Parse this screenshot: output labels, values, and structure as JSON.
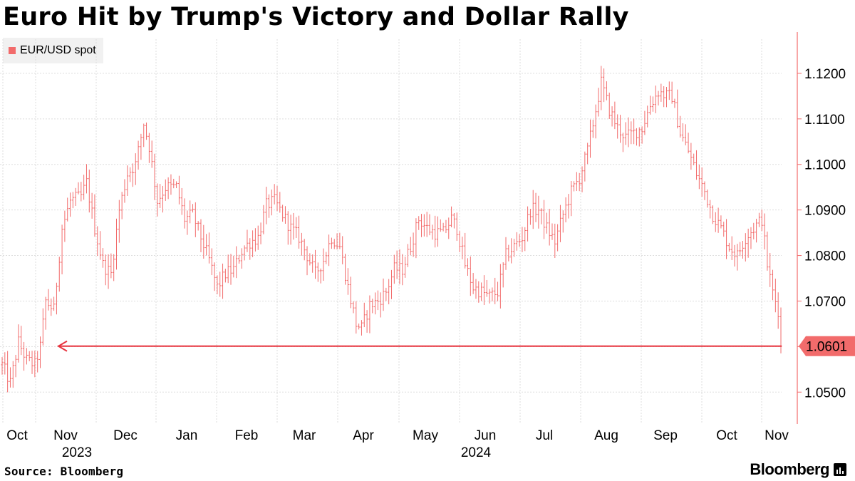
{
  "title": "Euro Hit by Trump's Victory and Dollar Rally",
  "legend": {
    "label": "EUR/USD spot",
    "color": "#f26b6b"
  },
  "source": "Source: Bloomberg",
  "brand": "Bloomberg",
  "colors": {
    "series": "#f26b6b",
    "grid": "#dddddd",
    "arrow": "#e8343f",
    "axis": "#f26b6b"
  },
  "chart_data": {
    "type": "ohlc",
    "series_name": "EUR/USD spot",
    "xlabel": "",
    "ylabel": "",
    "ylim": [
      1.043,
      1.1275
    ],
    "x_ticks": [
      "Oct",
      "Nov",
      "Dec",
      "Jan",
      "Feb",
      "Mar",
      "Apr",
      "May",
      "Jun",
      "Jul",
      "Aug",
      "Sep",
      "Oct",
      "Nov"
    ],
    "year_labels": [
      "2023",
      "2024"
    ],
    "y_ticks": [
      "1.0500",
      "1.0600",
      "1.0700",
      "1.0800",
      "1.0900",
      "1.1000",
      "1.1100",
      "1.1200"
    ],
    "y_tick_values": [
      1.05,
      1.06,
      1.07,
      1.08,
      1.09,
      1.1,
      1.11,
      1.12
    ],
    "last_value": 1.0601,
    "last_value_label": "1.0601",
    "reference_line": 1.0601,
    "anchors": [
      [
        0,
        1.056
      ],
      [
        3,
        1.052
      ],
      [
        6,
        1.061
      ],
      [
        9,
        1.057
      ],
      [
        12,
        1.056
      ],
      [
        14,
        1.06
      ],
      [
        16,
        1.07
      ],
      [
        19,
        1.068
      ],
      [
        22,
        1.086
      ],
      [
        25,
        1.092
      ],
      [
        29,
        1.093
      ],
      [
        31,
        1.096
      ],
      [
        34,
        1.086
      ],
      [
        37,
        1.078
      ],
      [
        40,
        1.076
      ],
      [
        43,
        1.09
      ],
      [
        46,
        1.098
      ],
      [
        49,
        1.1
      ],
      [
        52,
        1.109
      ],
      [
        54,
        1.104
      ],
      [
        57,
        1.092
      ],
      [
        60,
        1.095
      ],
      [
        64,
        1.095
      ],
      [
        67,
        1.088
      ],
      [
        70,
        1.089
      ],
      [
        73,
        1.084
      ],
      [
        76,
        1.079
      ],
      [
        79,
        1.073
      ],
      [
        82,
        1.076
      ],
      [
        85,
        1.077
      ],
      [
        88,
        1.081
      ],
      [
        91,
        1.083
      ],
      [
        94,
        1.084
      ],
      [
        97,
        1.091
      ],
      [
        100,
        1.092
      ],
      [
        103,
        1.089
      ],
      [
        106,
        1.086
      ],
      [
        109,
        1.084
      ],
      [
        112,
        1.08
      ],
      [
        115,
        1.076
      ],
      [
        118,
        1.079
      ],
      [
        121,
        1.084
      ],
      [
        124,
        1.082
      ],
      [
        127,
        1.073
      ],
      [
        130,
        1.065
      ],
      [
        132,
        1.064
      ],
      [
        135,
        1.069
      ],
      [
        138,
        1.07
      ],
      [
        141,
        1.072
      ],
      [
        144,
        1.077
      ],
      [
        147,
        1.077
      ],
      [
        150,
        1.082
      ],
      [
        153,
        1.088
      ],
      [
        156,
        1.086
      ],
      [
        159,
        1.085
      ],
      [
        162,
        1.085
      ],
      [
        165,
        1.088
      ],
      [
        167,
        1.086
      ],
      [
        170,
        1.078
      ],
      [
        173,
        1.073
      ],
      [
        176,
        1.072
      ],
      [
        179,
        1.071
      ],
      [
        182,
        1.072
      ],
      [
        185,
        1.08
      ],
      [
        188,
        1.082
      ],
      [
        191,
        1.084
      ],
      [
        194,
        1.09
      ],
      [
        197,
        1.09
      ],
      [
        200,
        1.086
      ],
      [
        203,
        1.083
      ],
      [
        206,
        1.089
      ],
      [
        209,
        1.094
      ],
      [
        212,
        1.097
      ],
      [
        215,
        1.103
      ],
      [
        218,
        1.112
      ],
      [
        220,
        1.118
      ],
      [
        223,
        1.112
      ],
      [
        226,
        1.108
      ],
      [
        229,
        1.106
      ],
      [
        232,
        1.107
      ],
      [
        235,
        1.108
      ],
      [
        238,
        1.113
      ],
      [
        241,
        1.116
      ],
      [
        244,
        1.115
      ],
      [
        246,
        1.115
      ],
      [
        249,
        1.107
      ],
      [
        252,
        1.103
      ],
      [
        255,
        1.098
      ],
      [
        258,
        1.094
      ],
      [
        261,
        1.089
      ],
      [
        264,
        1.086
      ],
      [
        267,
        1.082
      ],
      [
        270,
        1.08
      ],
      [
        273,
        1.084
      ],
      [
        276,
        1.086
      ],
      [
        279,
        1.088
      ],
      [
        281,
        1.078
      ],
      [
        283,
        1.072
      ],
      [
        285,
        1.068
      ],
      [
        286,
        1.0601
      ]
    ]
  }
}
